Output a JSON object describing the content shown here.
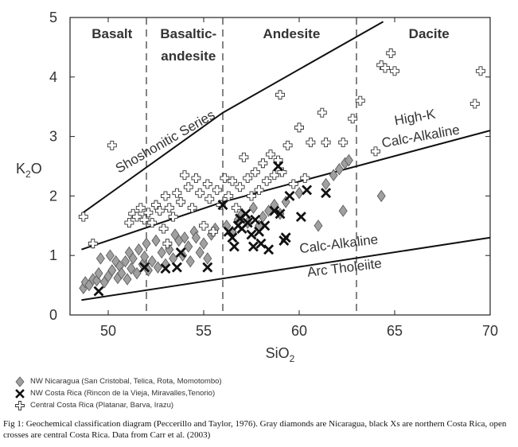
{
  "chart_data": {
    "type": "scatter",
    "xlabel": "SiO",
    "xlabel_sub": "2",
    "ylabel": "K",
    "ylabel_sub": "2",
    "ylabel_suffix": "O",
    "xlim": [
      48,
      70
    ],
    "ylim": [
      0,
      5
    ],
    "x_ticks": [
      50,
      55,
      60,
      65,
      70
    ],
    "y_ticks": [
      0,
      1,
      2,
      3,
      4,
      5
    ],
    "grid": false,
    "legend_placement": "below",
    "dividers": [
      52,
      56,
      63
    ],
    "fields": [
      {
        "label": "Basalt",
        "x": 50.2
      },
      {
        "label": "Basaltic-",
        "x": 54.2
      },
      {
        "label": "andesite",
        "x": 54.2
      },
      {
        "label": "Andesite",
        "x": 59.6
      },
      {
        "label": "Dacite",
        "x": 66.8
      }
    ],
    "boundary_lines": [
      {
        "name": "shoshonitic",
        "points": [
          [
            48.6,
            1.7
          ],
          [
            56,
            3.4
          ],
          [
            64.4,
            4.93
          ]
        ]
      },
      {
        "name": "highk",
        "points": [
          [
            48.6,
            1.1
          ],
          [
            56,
            1.9
          ],
          [
            70,
            3.1
          ]
        ]
      },
      {
        "name": "calcalk",
        "points": [
          [
            48.6,
            0.25
          ],
          [
            70,
            1.3
          ]
        ]
      }
    ],
    "series_labels": [
      {
        "text": "Shoshonitic Series",
        "x": 53.1,
        "y": 2.85,
        "angle": -30
      },
      {
        "text": "High-K",
        "x": 66.1,
        "y": 3.25,
        "angle": -10
      },
      {
        "text": "Calc-Alkaline",
        "x": 66.4,
        "y": 2.93,
        "angle": -10
      },
      {
        "text": "Calc-Alkaline",
        "x": 62.1,
        "y": 1.12,
        "angle": -7
      },
      {
        "text": "Arc Tholeiite",
        "x": 62.4,
        "y": 0.72,
        "angle": -7
      }
    ],
    "series": [
      {
        "name": "NW Nicaragua (San Cristobal, Telica, Rota, Momotombo)",
        "marker": "diamond",
        "color": "#a0a0a0",
        "points": [
          [
            48.7,
            0.45
          ],
          [
            48.8,
            0.55
          ],
          [
            49.0,
            0.5
          ],
          [
            49.2,
            0.6
          ],
          [
            49.4,
            0.58
          ],
          [
            49.5,
            0.7
          ],
          [
            49.6,
            0.95
          ],
          [
            49.8,
            0.55
          ],
          [
            50.0,
            0.65
          ],
          [
            50.1,
            1.0
          ],
          [
            50.2,
            0.75
          ],
          [
            50.4,
            0.9
          ],
          [
            50.5,
            0.62
          ],
          [
            50.6,
            0.82
          ],
          [
            50.7,
            0.7
          ],
          [
            50.9,
            0.9
          ],
          [
            51.0,
            0.6
          ],
          [
            51.1,
            1.05
          ],
          [
            51.2,
            0.78
          ],
          [
            51.3,
            0.95
          ],
          [
            51.5,
            0.7
          ],
          [
            51.6,
            1.1
          ],
          [
            51.8,
            0.85
          ],
          [
            51.9,
            0.98
          ],
          [
            52.0,
            1.2
          ],
          [
            52.1,
            0.75
          ],
          [
            52.3,
            0.9
          ],
          [
            52.5,
            1.25
          ],
          [
            52.6,
            0.8
          ],
          [
            52.8,
            1.05
          ],
          [
            53.0,
            0.85
          ],
          [
            53.2,
            1.1
          ],
          [
            53.4,
            0.95
          ],
          [
            53.5,
            1.35
          ],
          [
            53.7,
            1.25
          ],
          [
            53.9,
            1.0
          ],
          [
            54.0,
            1.3
          ],
          [
            54.2,
            1.15
          ],
          [
            54.3,
            0.9
          ],
          [
            54.5,
            1.4
          ],
          [
            54.6,
            1.3
          ],
          [
            54.8,
            1.05
          ],
          [
            55.0,
            1.2
          ],
          [
            55.2,
            0.95
          ],
          [
            55.4,
            1.35
          ],
          [
            55.6,
            1.45
          ],
          [
            56.2,
            1.5
          ],
          [
            56.5,
            1.4
          ],
          [
            56.8,
            1.6
          ],
          [
            57.0,
            1.7
          ],
          [
            57.3,
            1.55
          ],
          [
            57.6,
            1.8
          ],
          [
            57.9,
            1.5
          ],
          [
            58.1,
            1.65
          ],
          [
            58.4,
            1.75
          ],
          [
            58.7,
            1.85
          ],
          [
            59.0,
            1.7
          ],
          [
            59.3,
            1.9
          ],
          [
            60.0,
            2.05
          ],
          [
            61.0,
            1.5
          ],
          [
            61.4,
            2.2
          ],
          [
            61.8,
            2.35
          ],
          [
            62.1,
            2.45
          ],
          [
            62.3,
            1.75
          ],
          [
            62.4,
            2.55
          ],
          [
            62.6,
            2.6
          ],
          [
            64.3,
            2.0
          ]
        ]
      },
      {
        "name": "NW Costa Rica (Rincon de la Vieja, Miravalles,Tenorio)",
        "marker": "x",
        "color": "#111111",
        "points": [
          [
            49.5,
            0.4
          ],
          [
            51.9,
            0.8
          ],
          [
            53.0,
            0.78
          ],
          [
            53.6,
            0.8
          ],
          [
            53.8,
            1.05
          ],
          [
            55.2,
            0.8
          ],
          [
            56.0,
            1.85
          ],
          [
            56.3,
            1.4
          ],
          [
            56.5,
            1.3
          ],
          [
            56.6,
            1.15
          ],
          [
            56.8,
            1.5
          ],
          [
            56.9,
            1.62
          ],
          [
            57.0,
            1.45
          ],
          [
            57.2,
            1.7
          ],
          [
            57.3,
            1.55
          ],
          [
            57.5,
            1.35
          ],
          [
            57.6,
            1.15
          ],
          [
            57.7,
            1.6
          ],
          [
            57.9,
            1.4
          ],
          [
            58.0,
            1.2
          ],
          [
            58.2,
            1.5
          ],
          [
            58.4,
            1.1
          ],
          [
            58.7,
            1.75
          ],
          [
            58.9,
            2.5
          ],
          [
            59.0,
            1.7
          ],
          [
            59.2,
            1.25
          ],
          [
            59.5,
            2.0
          ],
          [
            60.1,
            1.65
          ],
          [
            60.4,
            2.1
          ],
          [
            61.4,
            2.05
          ],
          [
            59.3,
            1.3
          ]
        ]
      },
      {
        "name": "Central Costa Rica (Platanar, Barva, Irazu)",
        "marker": "cross",
        "color": "#ffffff",
        "points": [
          [
            48.7,
            1.65
          ],
          [
            49.2,
            1.2
          ],
          [
            50.2,
            2.85
          ],
          [
            51.1,
            1.55
          ],
          [
            51.3,
            1.7
          ],
          [
            51.5,
            1.65
          ],
          [
            51.7,
            1.8
          ],
          [
            51.9,
            1.6
          ],
          [
            52.1,
            1.72
          ],
          [
            52.3,
            1.55
          ],
          [
            52.5,
            1.85
          ],
          [
            52.7,
            1.75
          ],
          [
            52.9,
            1.45
          ],
          [
            53.0,
            2.0
          ],
          [
            53.2,
            1.8
          ],
          [
            53.4,
            1.65
          ],
          [
            53.6,
            2.05
          ],
          [
            53.8,
            1.9
          ],
          [
            54.0,
            2.35
          ],
          [
            54.2,
            2.15
          ],
          [
            54.4,
            1.8
          ],
          [
            54.6,
            2.3
          ],
          [
            54.8,
            2.05
          ],
          [
            55.0,
            1.5
          ],
          [
            55.2,
            2.2
          ],
          [
            55.3,
            1.95
          ],
          [
            55.5,
            1.4
          ],
          [
            55.7,
            2.1
          ],
          [
            55.9,
            1.85
          ],
          [
            56.1,
            2.3
          ],
          [
            56.3,
            2.0
          ],
          [
            56.5,
            2.25
          ],
          [
            56.7,
            1.8
          ],
          [
            56.9,
            2.15
          ],
          [
            57.1,
            2.65
          ],
          [
            57.3,
            2.3
          ],
          [
            57.5,
            2.0
          ],
          [
            57.7,
            2.4
          ],
          [
            57.9,
            2.1
          ],
          [
            58.1,
            2.55
          ],
          [
            58.3,
            2.25
          ],
          [
            58.5,
            2.7
          ],
          [
            58.7,
            2.35
          ],
          [
            58.9,
            2.6
          ],
          [
            59.1,
            2.4
          ],
          [
            59.4,
            2.85
          ],
          [
            59.7,
            2.2
          ],
          [
            60.0,
            3.15
          ],
          [
            60.3,
            2.3
          ],
          [
            60.6,
            2.9
          ],
          [
            61.2,
            3.4
          ],
          [
            61.4,
            2.9
          ],
          [
            62.3,
            2.9
          ],
          [
            62.8,
            3.3
          ],
          [
            63.2,
            3.6
          ],
          [
            64.0,
            2.75
          ],
          [
            64.3,
            4.2
          ],
          [
            64.5,
            4.15
          ],
          [
            64.8,
            4.4
          ],
          [
            65.0,
            4.1
          ],
          [
            69.2,
            3.55
          ],
          [
            69.5,
            4.1
          ],
          [
            59.0,
            3.7
          ],
          [
            53.1,
            1.2
          ]
        ]
      }
    ]
  },
  "legend": {
    "items": [
      {
        "label": "NW Nicaragua (San Cristobal, Telica, Rota, Momotombo)"
      },
      {
        "label": "NW Costa Rica (Rincon de la Vieja, Miravalles,Tenorio)"
      },
      {
        "label": "Central Costa Rica (Platanar, Barva, Irazu)"
      }
    ]
  },
  "caption": {
    "text": "Fig 1: Geochemical classification diagram (Peccerillo and Taylor, 1976).  Gray diamonds are Nicaragua, black Xs are northern Costa Rica, open crosses are central Costa Rica.  Data from Carr et al. (2003)"
  }
}
